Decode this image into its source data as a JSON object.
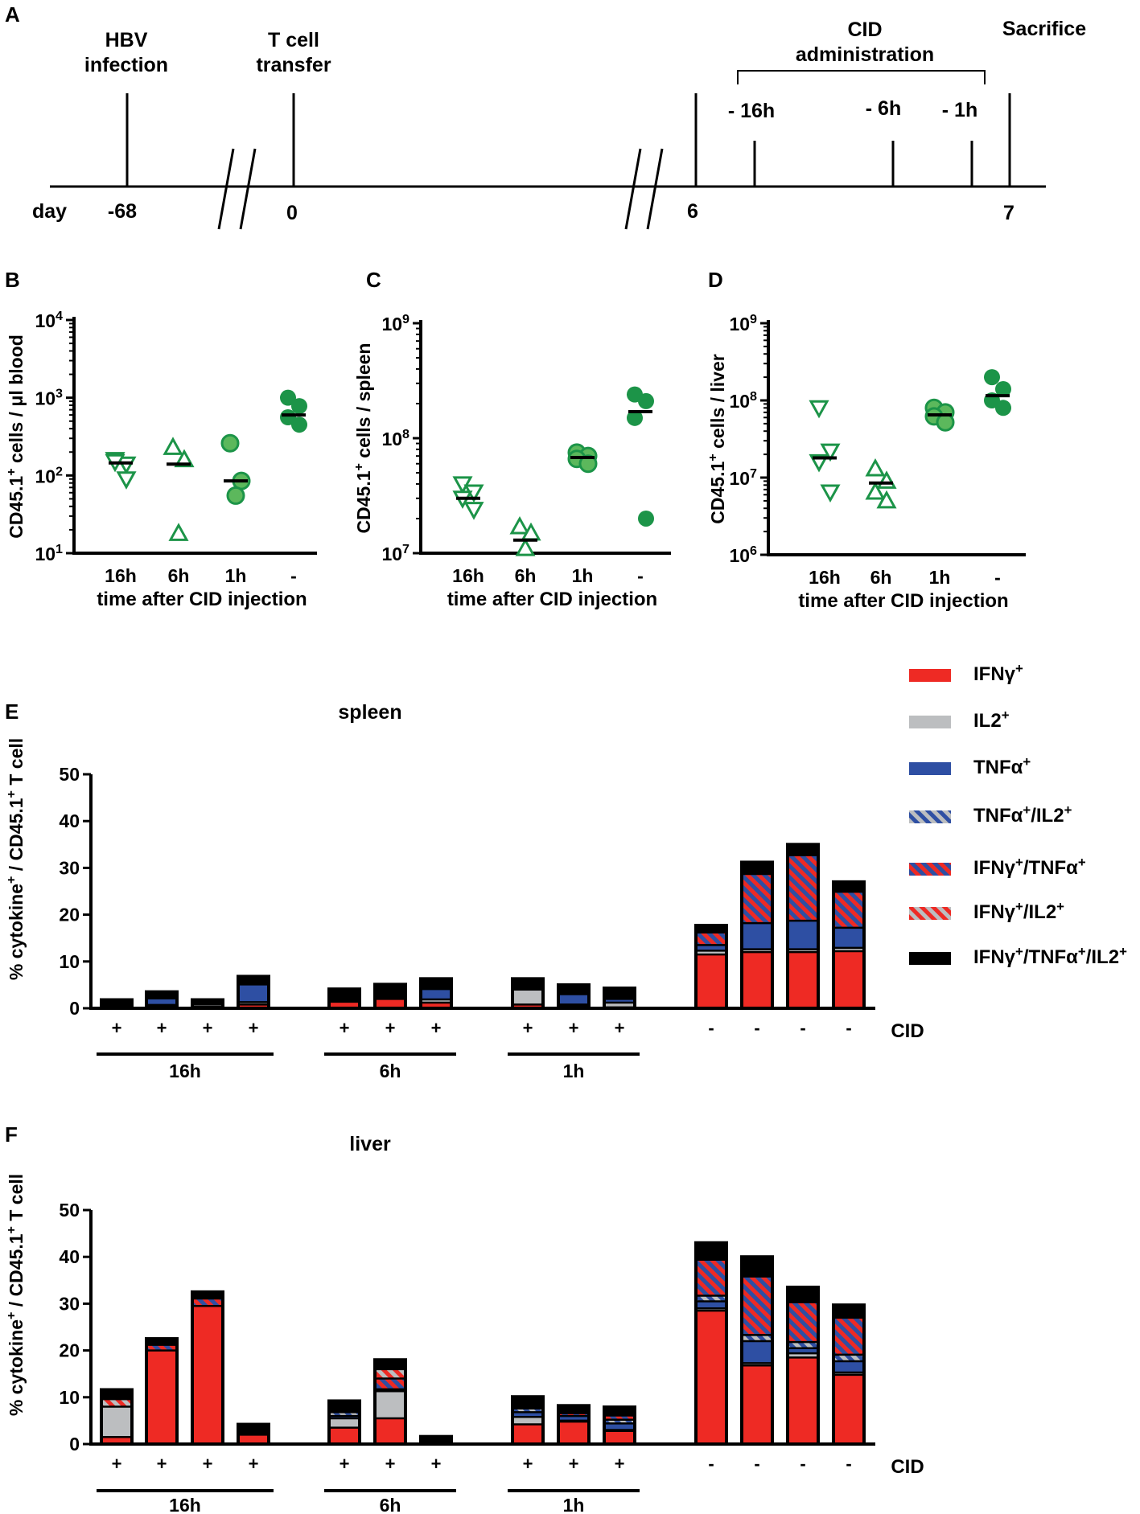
{
  "colors": {
    "ifng": "#ee2a24",
    "il2": "#bcbec0",
    "tnfa": "#2e4fa3",
    "green": "#1c9448",
    "green_light": "#5cb85c",
    "black": "#000000"
  },
  "panel_labels": {
    "A": "A",
    "B": "B",
    "C": "C",
    "D": "D",
    "E": "E",
    "F": "F"
  },
  "timeline": {
    "event_hbv_line1": "HBV",
    "event_hbv_line2": "infection",
    "event_tcell_line1": "T cell",
    "event_tcell_line2": "transfer",
    "event_cid_line1": "CID",
    "event_cid_line2": "administration",
    "event_sacrifice": "Sacrifice",
    "day_label": "day",
    "day_ticks": [
      "-68",
      "0",
      "6",
      "7"
    ],
    "cid_ticks": [
      "- 16h",
      "- 6h",
      "- 1h"
    ]
  },
  "chart_data": [
    {
      "panel": "B",
      "type": "scatter",
      "yscale": "log",
      "ylim": [
        10,
        10000
      ],
      "ytick_bases": [
        "10",
        "10",
        "10",
        "10"
      ],
      "ytick_exponents": [
        "1",
        "2",
        "3",
        "4"
      ],
      "ylabel_main": "CD45.1",
      "ylabel_sup": "+",
      "ylabel_rest": " cells / μl blood",
      "xlabel": "time after CID injection",
      "categories": [
        "16h",
        "6h",
        "1h",
        "-"
      ],
      "series": [
        {
          "name": "16h",
          "marker": "triangle-down",
          "filled": false,
          "values": [
            160,
            140,
            150,
            90
          ],
          "median": 145
        },
        {
          "name": "6h",
          "marker": "triangle-up",
          "filled": false,
          "values": [
            230,
            160,
            18
          ],
          "median": 140
        },
        {
          "name": "1h",
          "marker": "circle-light",
          "filled": true,
          "values": [
            260,
            85,
            55
          ],
          "median": 85
        },
        {
          "name": "-",
          "marker": "circle",
          "filled": true,
          "values": [
            1000,
            780,
            560,
            450
          ],
          "median": 600
        }
      ]
    },
    {
      "panel": "C",
      "type": "scatter",
      "yscale": "log",
      "ylim": [
        10000000,
        1000000000
      ],
      "ytick_bases": [
        "10",
        "10",
        "10"
      ],
      "ytick_exponents": [
        "7",
        "8",
        "9"
      ],
      "ylabel_main": "CD45.1",
      "ylabel_sup": "+",
      "ylabel_rest": " cells / spleen",
      "xlabel": "time after CID injection",
      "categories": [
        "16h",
        "6h",
        "1h",
        "-"
      ],
      "series": [
        {
          "name": "16h",
          "marker": "triangle-down",
          "filled": false,
          "values": [
            40000000,
            34000000,
            30000000,
            24000000
          ],
          "median": 30000000
        },
        {
          "name": "6h",
          "marker": "triangle-up",
          "filled": false,
          "values": [
            17000000,
            15000000,
            11000000
          ],
          "median": 13000000
        },
        {
          "name": "1h",
          "marker": "circle-light",
          "filled": true,
          "values": [
            75000000,
            70000000,
            66000000,
            60000000
          ],
          "median": 68000000
        },
        {
          "name": "-",
          "marker": "circle",
          "filled": true,
          "values": [
            240000000,
            210000000,
            150000000,
            20000000
          ],
          "median": 170000000
        }
      ]
    },
    {
      "panel": "D",
      "type": "scatter",
      "yscale": "log",
      "ylim": [
        1000000,
        1000000000
      ],
      "ytick_bases": [
        "10",
        "10",
        "10",
        "10"
      ],
      "ytick_exponents": [
        "6",
        "7",
        "8",
        "9"
      ],
      "ylabel_main": "CD45.1",
      "ylabel_sup": "+",
      "ylabel_rest": " cells / liver",
      "xlabel": "time after CID injection",
      "categories": [
        "16h",
        "6h",
        "1h",
        "-"
      ],
      "series": [
        {
          "name": "16h",
          "marker": "triangle-down",
          "filled": false,
          "values": [
            80000000,
            22000000,
            16000000,
            6500000
          ],
          "median": 18000000
        },
        {
          "name": "6h",
          "marker": "triangle-up",
          "filled": false,
          "values": [
            13000000,
            9000000,
            6500000,
            5000000
          ],
          "median": 8500000
        },
        {
          "name": "1h",
          "marker": "circle-light",
          "filled": true,
          "values": [
            80000000,
            70000000,
            62000000,
            52000000
          ],
          "median": 65000000
        },
        {
          "name": "-",
          "marker": "circle",
          "filled": true,
          "values": [
            200000000,
            140000000,
            100000000,
            80000000
          ],
          "median": 115000000
        }
      ]
    },
    {
      "panel": "E",
      "type": "bar",
      "stacked": true,
      "title": "spleen",
      "ylim": [
        0,
        50
      ],
      "yticks": [
        "0",
        "10",
        "20",
        "30",
        "40",
        "50"
      ],
      "ylabel_a": "% cytokine",
      "ylabel_a_sup": "+",
      "ylabel_b": " / CD45.1",
      "ylabel_b_sup": "+",
      "ylabel_c": " T cell",
      "cid_axis_label": "CID",
      "cid_marks": [
        "+",
        "+",
        "+",
        "+",
        "+",
        "+",
        "+",
        "+",
        "+",
        "+",
        "-",
        "-",
        "-",
        "-"
      ],
      "groups": [
        {
          "label": "16h",
          "bars": [
            0,
            3
          ]
        },
        {
          "label": "6h",
          "bars": [
            4,
            6
          ]
        },
        {
          "label": "1h",
          "bars": [
            7,
            9
          ]
        }
      ],
      "stack_order": [
        "IFNg",
        "IL2",
        "TNFa",
        "TNFa_IL2",
        "IFNg_TNFa",
        "IFNg_IL2",
        "IFNg_TNFa_IL2"
      ],
      "bars": [
        [
          0.3,
          0.4,
          0.3,
          0,
          0,
          0,
          0.8
        ],
        [
          0.3,
          0.4,
          1.4,
          0.3,
          0,
          0,
          1.1
        ],
        [
          0.3,
          0.5,
          0.2,
          0,
          0,
          0,
          0.8
        ],
        [
          0.8,
          0.5,
          3.8,
          0.2,
          0,
          0,
          1.5
        ],
        [
          1.4,
          0.3,
          0.4,
          0,
          0,
          0,
          2.0
        ],
        [
          2.0,
          0.3,
          0.2,
          0,
          0,
          0,
          2.6
        ],
        [
          1.2,
          0.7,
          2.2,
          0.2,
          0,
          0,
          2.0
        ],
        [
          0.8,
          3.2,
          0,
          0,
          0,
          0,
          2.3
        ],
        [
          0.4,
          0.4,
          2.2,
          0,
          0,
          0,
          2.0
        ],
        [
          0.2,
          1.0,
          0.8,
          0.3,
          0,
          0,
          2.0
        ],
        [
          11.5,
          0.8,
          1.2,
          0,
          2.7,
          0,
          1.5
        ],
        [
          12.0,
          0.6,
          5.6,
          0,
          10.5,
          0,
          2.5
        ],
        [
          12.0,
          0.6,
          6.1,
          0,
          14.0,
          0,
          2.3
        ],
        [
          12.2,
          0.7,
          4.3,
          0,
          7.7,
          0,
          2.1
        ]
      ]
    },
    {
      "panel": "F",
      "type": "bar",
      "stacked": true,
      "title": "liver",
      "ylim": [
        0,
        50
      ],
      "yticks": [
        "0",
        "10",
        "20",
        "30",
        "40",
        "50"
      ],
      "ylabel_a": "% cytokine",
      "ylabel_a_sup": "+",
      "ylabel_b": " / CD45.1",
      "ylabel_b_sup": "+",
      "ylabel_c": " T cell",
      "cid_axis_label": "CID",
      "cid_marks": [
        "+",
        "+",
        "+",
        "+",
        "+",
        "+",
        "+",
        "+",
        "+",
        "+",
        "-",
        "-",
        "-",
        "-"
      ],
      "groups": [
        {
          "label": "16h",
          "bars": [
            0,
            3
          ]
        },
        {
          "label": "6h",
          "bars": [
            4,
            6
          ]
        },
        {
          "label": "1h",
          "bars": [
            7,
            9
          ]
        }
      ],
      "stack_order": [
        "IFNg",
        "IL2",
        "TNFa",
        "TNFa_IL2",
        "IFNg_TNFa",
        "IFNg_IL2",
        "IFNg_TNFa_IL2"
      ],
      "bars": [
        [
          1.5,
          6.5,
          0,
          0,
          0,
          1.6,
          2.0
        ],
        [
          20.0,
          0,
          0,
          0,
          1.2,
          0,
          1.3
        ],
        [
          29.5,
          0,
          0,
          0,
          1.6,
          0,
          1.4
        ],
        [
          2.0,
          0,
          0,
          0,
          0,
          0,
          2.2
        ],
        [
          3.5,
          2.0,
          0.5,
          0.8,
          0.3,
          0,
          2.1
        ],
        [
          5.5,
          5.8,
          0.4,
          0,
          2.3,
          2.0,
          2.0
        ],
        [
          0,
          0,
          0,
          0,
          0,
          0,
          1.6
        ],
        [
          4.2,
          1.6,
          1.0,
          0.8,
          0.3,
          0,
          2.2
        ],
        [
          4.8,
          0.2,
          1.0,
          0,
          0.6,
          0,
          1.6
        ],
        [
          2.8,
          0.2,
          1.4,
          0.8,
          0.9,
          0,
          1.8
        ],
        [
          28.5,
          0.5,
          1.5,
          1.2,
          7.7,
          0,
          3.6
        ],
        [
          16.8,
          0.5,
          4.7,
          1.3,
          12.5,
          0,
          4.2
        ],
        [
          18.5,
          0.9,
          1.1,
          1.3,
          8.5,
          0,
          3.2
        ],
        [
          14.8,
          0.5,
          2.4,
          1.4,
          7.9,
          0,
          2.7
        ]
      ]
    }
  ],
  "legend": {
    "items": [
      {
        "key": "IFNg",
        "p1": "IFNγ",
        "s1": "+",
        "p2": "",
        "s2": "",
        "p3": "",
        "s3": ""
      },
      {
        "key": "IL2",
        "p1": "IL2",
        "s1": "+",
        "p2": "",
        "s2": "",
        "p3": "",
        "s3": ""
      },
      {
        "key": "TNFa",
        "p1": "TNFα",
        "s1": "+",
        "p2": "",
        "s2": "",
        "p3": "",
        "s3": ""
      },
      {
        "key": "TNFa_IL2",
        "p1": "TNFα",
        "s1": "+",
        "p2": "/IL2",
        "s2": "+",
        "p3": "",
        "s3": ""
      },
      {
        "key": "IFNg_TNFa",
        "p1": "IFNγ",
        "s1": "+",
        "p2": "/TNFα",
        "s2": "+",
        "p3": "",
        "s3": ""
      },
      {
        "key": "IFNg_IL2",
        "p1": "IFNγ",
        "s1": "+",
        "p2": "/IL2",
        "s2": "+",
        "p3": "",
        "s3": ""
      },
      {
        "key": "IFNg_TNFa_IL2",
        "p1": "IFNγ",
        "s1": "+",
        "p2": "/TNFα",
        "s2": "+",
        "p3": "/IL2",
        "s3": "+"
      }
    ]
  }
}
